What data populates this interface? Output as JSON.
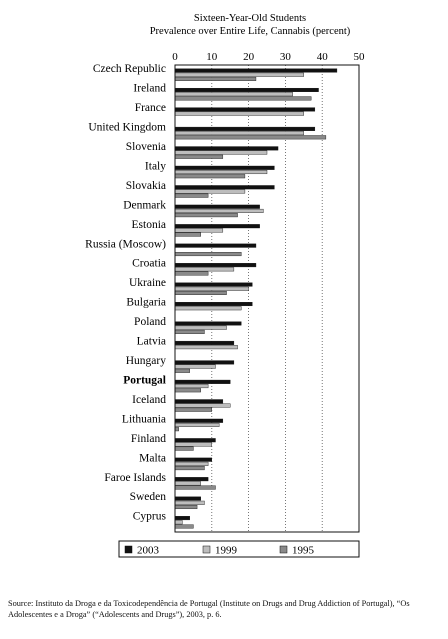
{
  "chart_data": {
    "type": "bar",
    "orientation": "horizontal",
    "title": "Sixteen-Year-Old Students",
    "subtitle": "Prevalence over Entire Life, Cannabis (percent)",
    "xlim": [
      0,
      50
    ],
    "xticks": [
      0,
      10,
      20,
      30,
      40,
      50
    ],
    "grid": "vertical dotted",
    "legend_position": "bottom",
    "highlight_category": "Portugal",
    "categories": [
      "Czech Republic",
      "Ireland",
      "France",
      "United Kingdom",
      "Slovenia",
      "Italy",
      "Slovakia",
      "Denmark",
      "Estonia",
      "Russia (Moscow)",
      "Croatia",
      "Ukraine",
      "Bulgaria",
      "Poland",
      "Latvia",
      "Hungary",
      "Portugal",
      "Iceland",
      "Lithuania",
      "Finland",
      "Malta",
      "Faroe Islands",
      "Sweden",
      "Cyprus"
    ],
    "series": [
      {
        "name": "2003",
        "color": "#111111",
        "values": [
          44,
          39,
          38,
          38,
          28,
          27,
          27,
          23,
          23,
          22,
          22,
          21,
          21,
          18,
          16,
          16,
          15,
          13,
          13,
          11,
          10,
          9,
          7,
          4
        ]
      },
      {
        "name": "1999",
        "color": "#bdbdbd",
        "values": [
          35,
          32,
          35,
          35,
          25,
          25,
          19,
          24,
          13,
          null,
          16,
          20,
          18,
          14,
          17,
          11,
          9,
          15,
          12,
          10,
          9,
          7,
          8,
          2
        ]
      },
      {
        "name": "1995",
        "color": "#8a8a8a",
        "values": [
          22,
          37,
          0,
          41,
          13,
          19,
          9,
          17,
          7,
          18,
          9,
          14,
          null,
          8,
          null,
          4,
          7,
          10,
          1,
          5,
          8,
          11,
          6,
          5
        ]
      }
    ]
  },
  "source_note": "Source: Instituto da Droga e da Toxicodependência de Portugal (Institute on Drugs and Drug Addiction of Portugal), “Os Adolescentes e a Droga” (“Adolescents and Drugs”), 2003, p. 6."
}
